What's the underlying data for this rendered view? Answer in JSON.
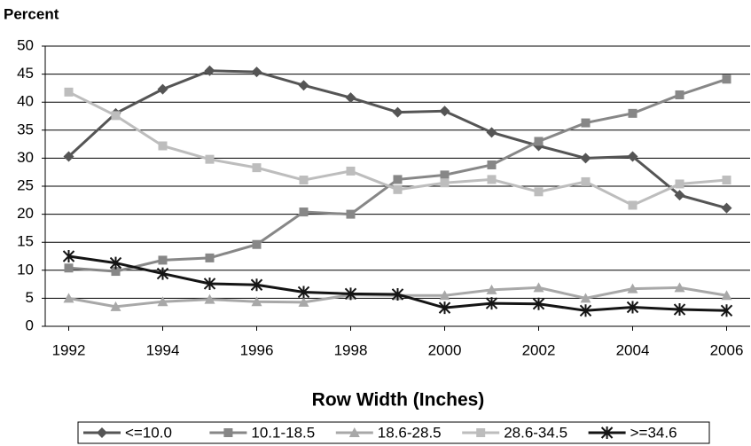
{
  "chart_data": {
    "type": "line",
    "y_label": "Percent",
    "x_label": "Row Width (Inches)",
    "x": [
      1992,
      1993,
      1994,
      1995,
      1996,
      1997,
      1998,
      1999,
      2000,
      2001,
      2002,
      2003,
      2004,
      2005,
      2006
    ],
    "xlim": [
      1991.5,
      2006.5
    ],
    "xticks": [
      1992,
      1994,
      1996,
      1998,
      2000,
      2002,
      2004,
      2006
    ],
    "ylim": [
      0,
      50
    ],
    "yticks": [
      0,
      5,
      10,
      15,
      20,
      25,
      30,
      35,
      40,
      45,
      50
    ],
    "grid": true,
    "legend": "bottom",
    "series": [
      {
        "name": "<=10.0",
        "color": "#555555",
        "marker": "diamond",
        "values": [
          30.3,
          38,
          42.3,
          45.6,
          45.4,
          43,
          40.8,
          38.2,
          38.4,
          34.6,
          32.2,
          30,
          30.3,
          23.4,
          21.1
        ]
      },
      {
        "name": "10.1-18.5",
        "color": "#878787",
        "marker": "square",
        "values": [
          10.4,
          9.8,
          11.8,
          12.2,
          14.6,
          20.4,
          20,
          26.2,
          27,
          28.8,
          33,
          36.3,
          38,
          41.3,
          44.1
        ]
      },
      {
        "name": "18.6-28.5",
        "color": "#a8a8a8",
        "marker": "triangle",
        "values": [
          5,
          3.5,
          4.4,
          4.8,
          4.4,
          4.3,
          5.6,
          5.5,
          5.5,
          6.5,
          6.9,
          5,
          6.7,
          6.9,
          5.5
        ]
      },
      {
        "name": "28.6-34.5",
        "color": "#bdbdbd",
        "marker": "square",
        "values": [
          41.8,
          37.6,
          32.2,
          29.8,
          28.3,
          26.1,
          27.7,
          24.4,
          25.6,
          26.2,
          24,
          25.8,
          21.6,
          25.4,
          26.1
        ]
      },
      {
        "name": ">=34.6",
        "color": "#141414",
        "marker": "star",
        "values": [
          12.5,
          11.3,
          9.4,
          7.6,
          7.4,
          6.1,
          5.8,
          5.7,
          3.3,
          4.1,
          4,
          2.8,
          3.4,
          3,
          2.8
        ]
      }
    ]
  }
}
